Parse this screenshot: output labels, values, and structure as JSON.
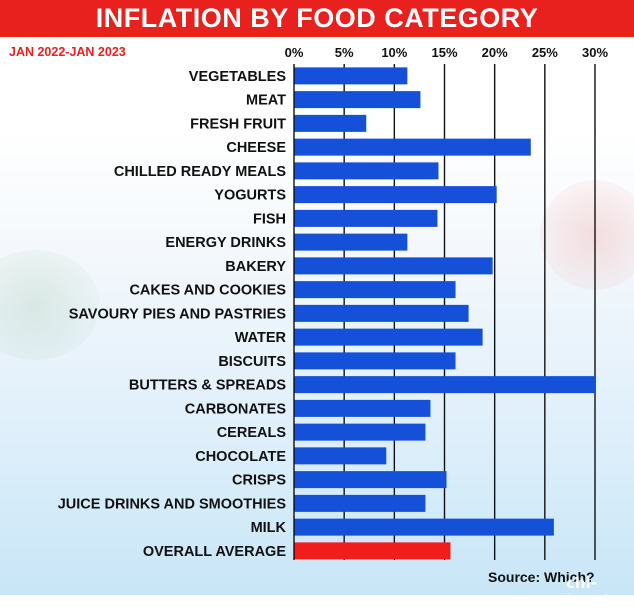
{
  "title": "INFLATION BY  FOOD CATEGORY",
  "subtitle": "JAN 2022-JAN 2023",
  "source": "Source: Which?",
  "watermark": "chi-ha.uk",
  "colors": {
    "bar": "#1450d8",
    "highlight": "#f21c1c",
    "title_bg": "#e8201e",
    "grid": "#111111"
  },
  "chart_data": {
    "type": "bar",
    "orientation": "horizontal",
    "title": "INFLATION BY  FOOD CATEGORY",
    "subtitle": "JAN 2022-JAN 2023",
    "xlim": [
      0,
      30
    ],
    "xticks": [
      "0%",
      "5%",
      "10%",
      "15%",
      "20%",
      "25%",
      "30%"
    ],
    "xtick_values": [
      0,
      5,
      10,
      15,
      20,
      25,
      30
    ],
    "grid": "vertical",
    "categories": [
      "VEGETABLES",
      "MEAT",
      "FRESH FRUIT",
      "CHEESE",
      "CHILLED READY MEALS",
      "YOGURTS",
      "FISH",
      "ENERGY DRINKS",
      "BAKERY",
      "CAKES AND COOKIES",
      "SAVOURY PIES AND PASTRIES",
      "WATER",
      "BISCUITS",
      "BUTTERS & SPREADS",
      "CARBONATES",
      "CEREALS",
      "CHOCOLATE",
      "CRISPS",
      "JUICE DRINKS AND SMOOTHIES",
      "MILK",
      "OVERALL AVERAGE"
    ],
    "values": [
      11.3,
      12.6,
      7.2,
      23.6,
      14.4,
      20.2,
      14.3,
      11.3,
      19.8,
      16.1,
      17.4,
      18.8,
      16.1,
      30.0,
      13.6,
      13.1,
      9.2,
      15.2,
      13.1,
      25.9,
      15.6
    ],
    "highlight_category": "OVERALL AVERAGE"
  }
}
